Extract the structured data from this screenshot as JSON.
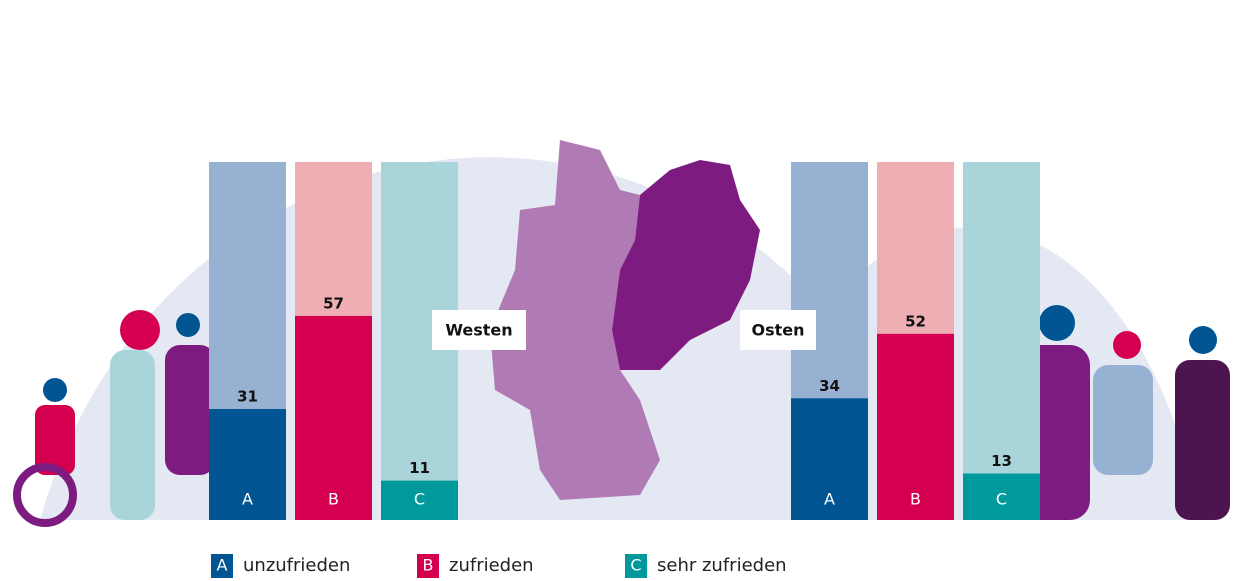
{
  "chart_data": {
    "type": "bar",
    "categories": [
      "Westen",
      "Osten"
    ],
    "series": [
      {
        "name": "unzufrieden",
        "label": "A",
        "color": "#005592",
        "background": "#97b1d2",
        "values": [
          31,
          34
        ]
      },
      {
        "name": "zufrieden",
        "label": "B",
        "color": "#d4004f",
        "background": "#eeaeb4",
        "values": [
          57,
          52
        ]
      },
      {
        "name": "sehr zufrieden",
        "label": "C",
        "color": "#009a9c",
        "background": "#a9d5da",
        "values": [
          11,
          13
        ]
      }
    ],
    "ylim": [
      0,
      100
    ]
  }
}
